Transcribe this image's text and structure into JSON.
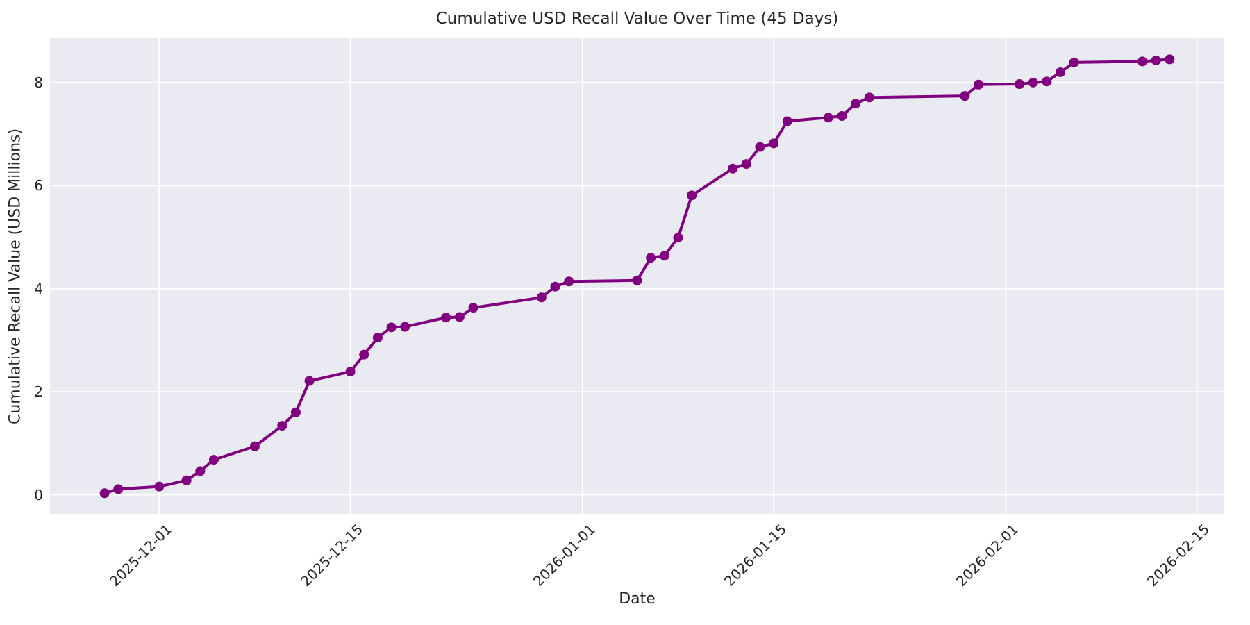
{
  "chart_data": {
    "type": "line",
    "title": "Cumulative USD Recall Value Over Time (45 Days)",
    "xlabel": "Date",
    "ylabel": "Cumulative Recall Value (USD Millions)",
    "x_ticks": [
      "2025-12-01",
      "2025-12-15",
      "2026-01-01",
      "2026-01-15",
      "2026-02-01",
      "2026-02-15"
    ],
    "y_ticks": [
      0,
      2,
      4,
      6,
      8
    ],
    "x_range": [
      "2025-11-23",
      "2026-02-17"
    ],
    "y_range": [
      -0.37,
      8.86
    ],
    "grid": true,
    "legend": false,
    "axes_background": "#EAEAF2",
    "grid_color": "#FFFFFF",
    "text_color": "#262626",
    "series": [
      {
        "name": "Cumulative USD Recall Value",
        "color": "#800080",
        "marker": "circle",
        "points": [
          {
            "date": "2025-11-27",
            "value": 0.03
          },
          {
            "date": "2025-11-28",
            "value": 0.11
          },
          {
            "date": "2025-12-01",
            "value": 0.16
          },
          {
            "date": "2025-12-03",
            "value": 0.28
          },
          {
            "date": "2025-12-04",
            "value": 0.46
          },
          {
            "date": "2025-12-05",
            "value": 0.68
          },
          {
            "date": "2025-12-08",
            "value": 0.94
          },
          {
            "date": "2025-12-10",
            "value": 1.34
          },
          {
            "date": "2025-12-11",
            "value": 1.6
          },
          {
            "date": "2025-12-12",
            "value": 2.21
          },
          {
            "date": "2025-12-15",
            "value": 2.39
          },
          {
            "date": "2025-12-16",
            "value": 2.72
          },
          {
            "date": "2025-12-17",
            "value": 3.05
          },
          {
            "date": "2025-12-18",
            "value": 3.25
          },
          {
            "date": "2025-12-19",
            "value": 3.26
          },
          {
            "date": "2025-12-22",
            "value": 3.44
          },
          {
            "date": "2025-12-23",
            "value": 3.45
          },
          {
            "date": "2025-12-24",
            "value": 3.63
          },
          {
            "date": "2025-12-29",
            "value": 3.83
          },
          {
            "date": "2025-12-30",
            "value": 4.04
          },
          {
            "date": "2025-12-31",
            "value": 4.14
          },
          {
            "date": "2026-01-05",
            "value": 4.16
          },
          {
            "date": "2026-01-06",
            "value": 4.6
          },
          {
            "date": "2026-01-07",
            "value": 4.64
          },
          {
            "date": "2026-01-08",
            "value": 4.99
          },
          {
            "date": "2026-01-09",
            "value": 5.81
          },
          {
            "date": "2026-01-12",
            "value": 6.33
          },
          {
            "date": "2026-01-13",
            "value": 6.42
          },
          {
            "date": "2026-01-14",
            "value": 6.75
          },
          {
            "date": "2026-01-15",
            "value": 6.82
          },
          {
            "date": "2026-01-16",
            "value": 7.25
          },
          {
            "date": "2026-01-19",
            "value": 7.32
          },
          {
            "date": "2026-01-20",
            "value": 7.35
          },
          {
            "date": "2026-01-21",
            "value": 7.59
          },
          {
            "date": "2026-01-22",
            "value": 7.71
          },
          {
            "date": "2026-01-29",
            "value": 7.74
          },
          {
            "date": "2026-01-30",
            "value": 7.96
          },
          {
            "date": "2026-02-02",
            "value": 7.97
          },
          {
            "date": "2026-02-03",
            "value": 8.0
          },
          {
            "date": "2026-02-04",
            "value": 8.02
          },
          {
            "date": "2026-02-05",
            "value": 8.2
          },
          {
            "date": "2026-02-06",
            "value": 8.39
          },
          {
            "date": "2026-02-11",
            "value": 8.41
          },
          {
            "date": "2026-02-12",
            "value": 8.43
          },
          {
            "date": "2026-02-13",
            "value": 8.45
          }
        ]
      }
    ]
  }
}
